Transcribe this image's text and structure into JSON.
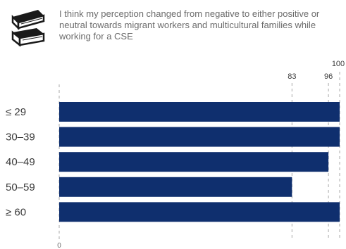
{
  "statement": "I think my perception changed from negative to either positive or neutral towards migrant workers and multicultural families while working for a CSE",
  "icon": "stacked-books-icon",
  "colors": {
    "bar": "#0f2f6e",
    "gridline": "#a8a8a8",
    "text": "#3a3a3a",
    "muted_text": "#6b6b6b"
  },
  "chart_data": {
    "type": "bar",
    "orientation": "horizontal",
    "categories": [
      "≤ 29",
      "30–39",
      "40–49",
      "50–59",
      "≥ 60"
    ],
    "values": [
      100,
      100,
      96,
      83,
      100
    ],
    "xlim": [
      0,
      100
    ],
    "reference_lines": [
      83,
      96,
      100
    ],
    "x_tick_labels": [
      "0"
    ],
    "grid": false,
    "legend": "none"
  }
}
